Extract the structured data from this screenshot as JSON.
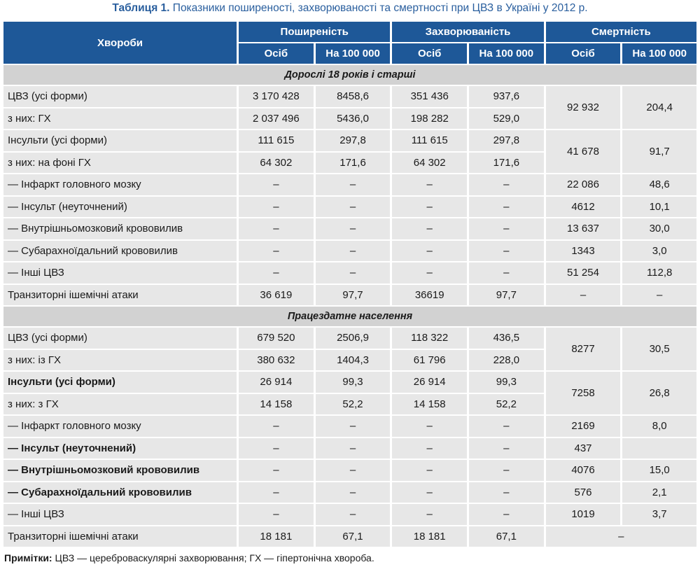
{
  "caption": {
    "prefix": "Таблиця 1.",
    "text": "Показники поширеності, захворюваності та смертності при ЦВЗ в Україні у 2012 р."
  },
  "header": {
    "disease": "Хвороби",
    "groups": [
      "Поширеність",
      "Захворюваність",
      "Смертність"
    ],
    "sub": [
      "Осіб",
      "На 100 000",
      "Осіб",
      "На 100 000",
      "Осіб",
      "На 100 000"
    ]
  },
  "sections": [
    {
      "title": "Дорослі 18 років і старші",
      "rows": [
        {
          "label": "ЦВЗ (усі форми)",
          "bold": false,
          "v": [
            "3 170 428",
            "8458,6",
            "351 436",
            "937,6"
          ],
          "m": [
            "92 932",
            "204,4"
          ],
          "span": 2
        },
        {
          "label": "з них: ГХ",
          "bold": false,
          "v": [
            "2 037 496",
            "5436,0",
            "198 282",
            "529,0"
          ],
          "m": null
        },
        {
          "label": "Інсульти (усі форми)",
          "bold": false,
          "v": [
            "111 615",
            "297,8",
            "111 615",
            "297,8"
          ],
          "m": [
            "41 678",
            "91,7"
          ],
          "span": 2
        },
        {
          "label": "з них: на фоні ГХ",
          "bold": false,
          "v": [
            "64 302",
            "171,6",
            "64 302",
            "171,6"
          ],
          "m": null
        },
        {
          "label": "— Інфаркт головного мозку",
          "bold": false,
          "v": [
            "–",
            "–",
            "–",
            "–"
          ],
          "m": [
            "22 086",
            "48,6"
          ],
          "span": 1
        },
        {
          "label": "— Інсульт (неуточнений)",
          "bold": false,
          "v": [
            "–",
            "–",
            "–",
            "–"
          ],
          "m": [
            "4612",
            "10,1"
          ],
          "span": 1
        },
        {
          "label": "— Внутрішньомозковий крововилив",
          "bold": false,
          "v": [
            "–",
            "–",
            "–",
            "–"
          ],
          "m": [
            "13 637",
            "30,0"
          ],
          "span": 1
        },
        {
          "label": "— Субарахноїдальний крововилив",
          "bold": false,
          "v": [
            "–",
            "–",
            "–",
            "–"
          ],
          "m": [
            "1343",
            "3,0"
          ],
          "span": 1
        },
        {
          "label": "— Інші ЦВЗ",
          "bold": false,
          "v": [
            "–",
            "–",
            "–",
            "–"
          ],
          "m": [
            "51 254",
            "112,8"
          ],
          "span": 1
        },
        {
          "label": "Транзиторні ішемічні атаки",
          "bold": false,
          "v": [
            "36 619",
            "97,7",
            "36619",
            "97,7"
          ],
          "m": [
            "–",
            "–"
          ],
          "span": 1
        }
      ]
    },
    {
      "title": "Працездатне населення",
      "rows": [
        {
          "label": "ЦВЗ (усі форми)",
          "bold": false,
          "v": [
            "679 520",
            "2506,9",
            "118 322",
            "436,5"
          ],
          "m": [
            "8277",
            "30,5"
          ],
          "span": 2
        },
        {
          "label": "з них: із ГХ",
          "bold": false,
          "v": [
            "380 632",
            "1404,3",
            "61 796",
            "228,0"
          ],
          "m": null
        },
        {
          "label": "Інсульти (усі форми)",
          "bold": true,
          "v": [
            "26 914",
            "99,3",
            "26 914",
            "99,3"
          ],
          "m": [
            "7258",
            "26,8"
          ],
          "span": 2
        },
        {
          "label": "з них: з ГХ",
          "bold": false,
          "v": [
            "14 158",
            "52,2",
            "14 158",
            "52,2"
          ],
          "m": null
        },
        {
          "label": "— Інфаркт головного мозку",
          "bold": false,
          "v": [
            "–",
            "–",
            "–",
            "–"
          ],
          "m": [
            "2169",
            "8,0"
          ],
          "span": 1
        },
        {
          "label": "— Інсульт (неуточнений)",
          "bold": true,
          "v": [
            "–",
            "–",
            "–",
            "–"
          ],
          "m": [
            "437",
            ""
          ],
          "span": 1
        },
        {
          "label": "— Внутрішньомозковий крововилив",
          "bold": true,
          "v": [
            "–",
            "–",
            "–",
            "–"
          ],
          "m": [
            "4076",
            "15,0"
          ],
          "span": 1
        },
        {
          "label": "— Субарахноїдальний крововилив",
          "bold": true,
          "v": [
            "–",
            "–",
            "–",
            "–"
          ],
          "m": [
            "576",
            "2,1"
          ],
          "span": 1
        },
        {
          "label": "— Інші ЦВЗ",
          "bold": false,
          "v": [
            "–",
            "–",
            "–",
            "–"
          ],
          "m": [
            "1019",
            "3,7"
          ],
          "span": 1
        },
        {
          "label": "Транзиторні ішемічні атаки",
          "bold": false,
          "v": [
            "18 181",
            "67,1",
            "18 181",
            "67,1"
          ],
          "m": [
            "–"
          ],
          "span": 1,
          "merged_m": true
        }
      ]
    }
  ],
  "note": {
    "key": "Примітки:",
    "text": " ЦВЗ — цереброваскулярні захворювання; ГХ — гіпертонічна хвороба."
  }
}
